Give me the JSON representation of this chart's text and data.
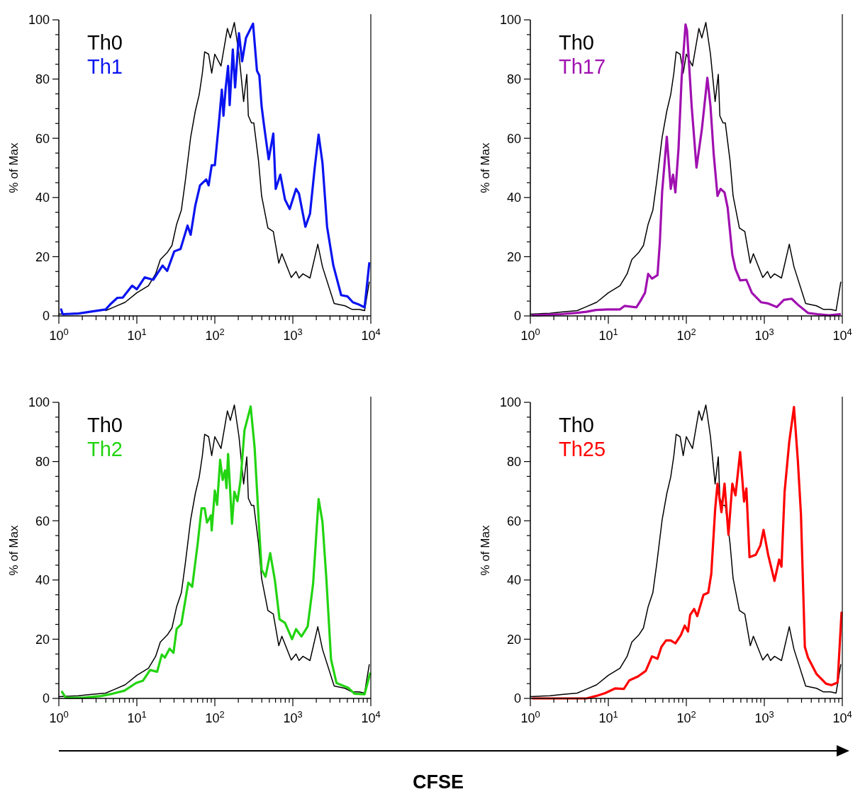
{
  "chart_data": [
    {
      "type": "line",
      "log": "x",
      "legend": "top left",
      "ylabel": "% of Max",
      "xlim": [
        1,
        10000
      ],
      "ylim": [
        0,
        100
      ],
      "xticks": [
        {
          "value": 1,
          "label": "10$^{0}$"
        },
        {
          "value": 2,
          "label": null
        },
        {
          "value": 3,
          "label": null
        },
        {
          "value": 4,
          "label": null
        },
        {
          "value": 5,
          "label": null
        },
        {
          "value": 6,
          "label": null
        },
        {
          "value": 7,
          "label": null
        },
        {
          "value": 8,
          "label": null
        },
        {
          "value": 9,
          "label": null
        },
        {
          "value": 10,
          "label": "10$^{1}$"
        },
        {
          "value": 20,
          "label": null
        },
        {
          "value": 30,
          "label": null
        },
        {
          "value": 40,
          "label": null
        },
        {
          "value": 50,
          "label": null
        },
        {
          "value": 60,
          "label": null
        },
        {
          "value": 70,
          "label": null
        },
        {
          "value": 80,
          "label": null
        },
        {
          "value": 90,
          "label": null
        },
        {
          "value": 100,
          "label": "10$^{2}$"
        },
        {
          "value": 200,
          "label": null
        },
        {
          "value": 300,
          "label": null
        },
        {
          "value": 400,
          "label": null
        },
        {
          "value": 500,
          "label": null
        },
        {
          "value": 600,
          "label": null
        },
        {
          "value": 700,
          "label": null
        },
        {
          "value": 800,
          "label": null
        },
        {
          "value": 900,
          "label": null
        },
        {
          "value": 1000,
          "label": "10$^{3}$"
        },
        {
          "value": 2000,
          "label": null
        },
        {
          "value": 3000,
          "label": null
        },
        {
          "value": 4000,
          "label": null
        },
        {
          "value": 5000,
          "label": null
        },
        {
          "value": 6000,
          "label": null
        },
        {
          "value": 7000,
          "label": null
        },
        {
          "value": 8000,
          "label": null
        },
        {
          "value": 9000,
          "label": null
        },
        {
          "value": 10000,
          "label": "10$^{4}$"
        }
      ],
      "yticks": [
        0,
        {
          "value": 5,
          "label": null
        },
        {
          "value": 10,
          "label": null
        },
        {
          "value": 15,
          "label": null
        },
        20,
        {
          "value": 25,
          "label": null
        },
        {
          "value": 30,
          "label": null
        },
        {
          "value": 35,
          "label": null
        },
        40,
        {
          "value": 45,
          "label": null
        },
        {
          "value": 50,
          "label": null
        },
        {
          "value": 55,
          "label": null
        },
        60,
        {
          "value": 65,
          "label": null
        },
        {
          "value": 70,
          "label": null
        },
        {
          "value": 75,
          "label": null
        },
        80,
        {
          "value": 85,
          "label": null
        },
        {
          "value": 90,
          "label": null
        },
        {
          "value": 95,
          "label": null
        },
        100
      ],
      "x": [
        1,
        1.78,
        2.51,
        3.98,
        5.01,
        7.08,
        10,
        14.1,
        17.4,
        20,
        24.5,
        28.2,
        32.4,
        37.2,
        41.7,
        49,
        56.2,
        63.1,
        69.2,
        74.1,
        83.2,
        91.2,
        100,
        120,
        145,
        158,
        178,
        204,
        234,
        257,
        269,
        295,
        316,
        363,
        398,
        479,
        562,
        661,
        724,
        955,
        1100,
        1200,
        1350,
        1660,
        2090,
        2400,
        3390,
        4680,
        5750,
        7080,
        8320,
        9550
      ],
      "series": [
        {
          "name": "Th0",
          "color": "#000000",
          "values": [
            0.6,
            0.9,
            null,
            1.8,
            2.9,
            4.6,
            7.8,
            10.2,
            14.2,
            19,
            21.4,
            23.8,
            31,
            35.7,
            45.3,
            60.4,
            69.2,
            74.8,
            82,
            89.2,
            88.4,
            82,
            88.4,
            84.4,
            97.1,
            93.9,
            99.1,
            88.4,
            72.4,
            81.6,
            67.6,
            65.2,
            65.2,
            52.5,
            40.5,
            29.7,
            28.5,
            17.8,
            21,
            13,
            15,
            12.8,
            14.2,
            12.8,
            24.2,
            16.6,
            4.2,
            3.4,
            2.2,
            2.2,
            1.8,
            11.4
          ]
        },
        {
          "name": "Th1",
          "color": "#0a14f0",
          "x": [
            1.07,
            1.12,
            1.78,
            2.51,
            3.98,
            4.68,
            5.62,
            6.61,
            8.71,
            10,
            12.6,
            16.2,
            21.4,
            24.5,
            30.2,
            36.3,
            44.7,
            49,
            56.2,
            64.6,
            77.6,
            83.2,
            91.2,
            100,
            112,
            123,
            129,
            138,
            148,
            155,
            170,
            182,
            204,
            224,
            251,
            288,
            309,
            347,
            372,
            398,
            427,
            490,
            562,
            603,
            692,
            794,
            912,
            1100,
            1200,
            1450,
            1660,
            1910,
            2140,
            2400,
            2750,
            3310,
            4170,
            5010,
            5890,
            7080,
            8320,
            9550
          ],
          "values": [
            2.2,
            0.6,
            0.8,
            1.4,
            2.2,
            4.2,
            6.1,
            6.2,
            10.2,
            9,
            13,
            12.2,
            17,
            15.2,
            21.8,
            22.6,
            30.5,
            27.4,
            37.3,
            44.1,
            46.1,
            44.1,
            50.9,
            50.9,
            64.4,
            76.4,
            67.6,
            77.2,
            84.4,
            71.2,
            90,
            77.2,
            95.5,
            86,
            93.9,
            97.1,
            98.7,
            82.8,
            81.2,
            70.8,
            64.4,
            52.9,
            61.6,
            42.9,
            47.7,
            39.3,
            36.1,
            42.9,
            41.3,
            30.1,
            34.5,
            50.1,
            61.2,
            51.7,
            30.1,
            17,
            7,
            6.6,
            4.6,
            3.8,
            2.9,
            17.8
          ]
        }
      ]
    },
    {
      "type": "line",
      "log": "x",
      "legend": "top left",
      "ylabel": "% of Max",
      "xlim": [
        1,
        10000
      ],
      "ylim": [
        0,
        100
      ],
      "xticks": [
        {
          "value": 1,
          "label": "10$^{0}$"
        },
        {
          "value": 2,
          "label": null
        },
        {
          "value": 3,
          "label": null
        },
        {
          "value": 4,
          "label": null
        },
        {
          "value": 5,
          "label": null
        },
        {
          "value": 6,
          "label": null
        },
        {
          "value": 7,
          "label": null
        },
        {
          "value": 8,
          "label": null
        },
        {
          "value": 9,
          "label": null
        },
        {
          "value": 10,
          "label": "10$^{1}$"
        },
        {
          "value": 20,
          "label": null
        },
        {
          "value": 30,
          "label": null
        },
        {
          "value": 40,
          "label": null
        },
        {
          "value": 50,
          "label": null
        },
        {
          "value": 60,
          "label": null
        },
        {
          "value": 70,
          "label": null
        },
        {
          "value": 80,
          "label": null
        },
        {
          "value": 90,
          "label": null
        },
        {
          "value": 100,
          "label": "10$^{2}$"
        },
        {
          "value": 200,
          "label": null
        },
        {
          "value": 300,
          "label": null
        },
        {
          "value": 400,
          "label": null
        },
        {
          "value": 500,
          "label": null
        },
        {
          "value": 600,
          "label": null
        },
        {
          "value": 700,
          "label": null
        },
        {
          "value": 800,
          "label": null
        },
        {
          "value": 900,
          "label": null
        },
        {
          "value": 1000,
          "label": "10$^{3}$"
        },
        {
          "value": 2000,
          "label": null
        },
        {
          "value": 3000,
          "label": null
        },
        {
          "value": 4000,
          "label": null
        },
        {
          "value": 5000,
          "label": null
        },
        {
          "value": 6000,
          "label": null
        },
        {
          "value": 7000,
          "label": null
        },
        {
          "value": 8000,
          "label": null
        },
        {
          "value": 9000,
          "label": null
        },
        {
          "value": 10000,
          "label": "10$^{4}$"
        }
      ],
      "yticks": [
        0,
        {
          "value": 5,
          "label": null
        },
        {
          "value": 10,
          "label": null
        },
        {
          "value": 15,
          "label": null
        },
        20,
        {
          "value": 25,
          "label": null
        },
        {
          "value": 30,
          "label": null
        },
        {
          "value": 35,
          "label": null
        },
        40,
        {
          "value": 45,
          "label": null
        },
        {
          "value": 50,
          "label": null
        },
        {
          "value": 55,
          "label": null
        },
        60,
        {
          "value": 65,
          "label": null
        },
        {
          "value": 70,
          "label": null
        },
        {
          "value": 75,
          "label": null
        },
        80,
        {
          "value": 85,
          "label": null
        },
        {
          "value": 90,
          "label": null
        },
        {
          "value": 95,
          "label": null
        },
        100
      ],
      "x": [
        1,
        1.78,
        2.51,
        3.98,
        5.01,
        7.08,
        10,
        14.1,
        17.4,
        20,
        24.5,
        28.2,
        32.4,
        37.2,
        41.7,
        49,
        56.2,
        63.1,
        69.2,
        74.1,
        83.2,
        91.2,
        100,
        120,
        145,
        158,
        178,
        204,
        234,
        257,
        269,
        295,
        316,
        363,
        398,
        479,
        562,
        661,
        724,
        955,
        1100,
        1200,
        1350,
        1660,
        2090,
        2400,
        3390,
        4680,
        5750,
        7080,
        8320,
        9550
      ],
      "series": [
        {
          "name": "Th0",
          "color": "#000000",
          "values": [
            0.6,
            0.9,
            1.3,
            1.8,
            2.9,
            4.6,
            7.8,
            10.2,
            14.2,
            19,
            21.4,
            23.8,
            31,
            35.7,
            45.3,
            60.4,
            69.2,
            74.8,
            82,
            89.2,
            88.4,
            82,
            88.4,
            84.4,
            97.1,
            93.9,
            99.1,
            88.4,
            72.4,
            81.6,
            67.6,
            65.2,
            65.2,
            52.5,
            40.5,
            29.7,
            28.5,
            17.8,
            21,
            13,
            15,
            12.8,
            14.2,
            12.8,
            24.2,
            16.6,
            4.2,
            3.4,
            2.2,
            2.2,
            1.8,
            11.4
          ]
        },
        {
          "name": "Th17",
          "color": "#a010b0",
          "x": [
            1.07,
            2.45,
            3.8,
            5.25,
            6.92,
            9.77,
            14.1,
            16.2,
            22.9,
            25.7,
            29.5,
            32.4,
            36.3,
            42.7,
            45.7,
            49,
            56.2,
            63.1,
            67.6,
            72.4,
            79.4,
            87.1,
            97.7,
            102,
            117,
            135,
            158,
            186,
            204,
            224,
            251,
            275,
            309,
            339,
            389,
            427,
            490,
            589,
            692,
            912,
            1120,
            1450,
            1780,
            2240,
            2690,
            3630,
            4790,
            6760,
            9330
          ],
          "values": [
            0.2,
            0.6,
            1,
            1.4,
            2,
            2.2,
            2.2,
            3.4,
            2.9,
            5,
            7.8,
            14.2,
            12.6,
            13.8,
            24.6,
            42.1,
            60.5,
            42.9,
            47.7,
            41.7,
            56.5,
            80.4,
            98.4,
            96.4,
            70.9,
            50.1,
            62.9,
            80.4,
            70.9,
            54.9,
            40.5,
            42.9,
            41.7,
            36.5,
            20.6,
            15.8,
            12,
            12.2,
            7.8,
            4.6,
            4.2,
            3,
            5.4,
            5.8,
            3.8,
            1,
            0.6,
            0.2,
            0.6
          ]
        }
      ]
    },
    {
      "type": "line",
      "log": "x",
      "legend": "top left",
      "ylabel": "% of Max",
      "xlim": [
        1,
        10000
      ],
      "ylim": [
        0,
        100
      ],
      "xticks": [
        {
          "value": 1,
          "label": "10$^{0}$"
        },
        {
          "value": 2,
          "label": null
        },
        {
          "value": 3,
          "label": null
        },
        {
          "value": 4,
          "label": null
        },
        {
          "value": 5,
          "label": null
        },
        {
          "value": 6,
          "label": null
        },
        {
          "value": 7,
          "label": null
        },
        {
          "value": 8,
          "label": null
        },
        {
          "value": 9,
          "label": null
        },
        {
          "value": 10,
          "label": "10$^{1}$"
        },
        {
          "value": 20,
          "label": null
        },
        {
          "value": 30,
          "label": null
        },
        {
          "value": 40,
          "label": null
        },
        {
          "value": 50,
          "label": null
        },
        {
          "value": 60,
          "label": null
        },
        {
          "value": 70,
          "label": null
        },
        {
          "value": 80,
          "label": null
        },
        {
          "value": 90,
          "label": null
        },
        {
          "value": 100,
          "label": "10$^{2}$"
        },
        {
          "value": 200,
          "label": null
        },
        {
          "value": 300,
          "label": null
        },
        {
          "value": 400,
          "label": null
        },
        {
          "value": 500,
          "label": null
        },
        {
          "value": 600,
          "label": null
        },
        {
          "value": 700,
          "label": null
        },
        {
          "value": 800,
          "label": null
        },
        {
          "value": 900,
          "label": null
        },
        {
          "value": 1000,
          "label": "10$^{3}$"
        },
        {
          "value": 2000,
          "label": null
        },
        {
          "value": 3000,
          "label": null
        },
        {
          "value": 4000,
          "label": null
        },
        {
          "value": 5000,
          "label": null
        },
        {
          "value": 6000,
          "label": null
        },
        {
          "value": 7000,
          "label": null
        },
        {
          "value": 8000,
          "label": null
        },
        {
          "value": 9000,
          "label": null
        },
        {
          "value": 10000,
          "label": "10$^{4}$"
        }
      ],
      "yticks": [
        0,
        {
          "value": 5,
          "label": null
        },
        {
          "value": 10,
          "label": null
        },
        {
          "value": 15,
          "label": null
        },
        20,
        {
          "value": 25,
          "label": null
        },
        {
          "value": 30,
          "label": null
        },
        {
          "value": 35,
          "label": null
        },
        40,
        {
          "value": 45,
          "label": null
        },
        {
          "value": 50,
          "label": null
        },
        {
          "value": 55,
          "label": null
        },
        60,
        {
          "value": 65,
          "label": null
        },
        {
          "value": 70,
          "label": null
        },
        {
          "value": 75,
          "label": null
        },
        80,
        {
          "value": 85,
          "label": null
        },
        {
          "value": 90,
          "label": null
        },
        {
          "value": 95,
          "label": null
        },
        100
      ],
      "x": [
        1,
        1.78,
        2.51,
        3.98,
        5.01,
        7.08,
        10,
        14.1,
        17.4,
        20,
        24.5,
        28.2,
        32.4,
        37.2,
        41.7,
        49,
        56.2,
        63.1,
        69.2,
        74.1,
        83.2,
        91.2,
        100,
        120,
        145,
        158,
        178,
        204,
        234,
        257,
        269,
        295,
        316,
        363,
        398,
        479,
        562,
        661,
        724,
        955,
        1100,
        1200,
        1350,
        1660,
        2090,
        2400,
        3390,
        4680,
        5750,
        7080,
        8320,
        9550
      ],
      "series": [
        {
          "name": "Th0",
          "color": "#000000",
          "values": [
            0.6,
            0.9,
            1.3,
            1.8,
            2.9,
            4.6,
            7.8,
            10.2,
            14.2,
            19,
            21.4,
            23.8,
            31,
            35.7,
            45.3,
            60.4,
            69.2,
            74.8,
            82,
            89.2,
            88.4,
            82,
            88.4,
            84.4,
            97.1,
            93.9,
            99.1,
            88.4,
            72.4,
            81.6,
            67.6,
            65.2,
            65.2,
            52.5,
            40.5,
            29.7,
            28.5,
            17.8,
            21,
            13,
            15,
            12.8,
            14.2,
            12.8,
            24.2,
            16.6,
            4.2,
            3.4,
            2.2,
            2.2,
            1.8,
            11.4
          ]
        },
        {
          "name": "Th2",
          "color": "#22d411",
          "x": [
            1.1,
            1.23,
            2,
            3.47,
            4.9,
            6.92,
            9.77,
            12,
            14.8,
            18.2,
            20.9,
            22.9,
            26.3,
            29.5,
            32.4,
            37.2,
            45.7,
            51.3,
            60.3,
            67.6,
            74.1,
            79.4,
            89.1,
            91.2,
            100,
            107,
            117,
            126,
            135,
            141,
            148,
            166,
            178,
            195,
            214,
            240,
            288,
            324,
            372,
            398,
            447,
            513,
            589,
            676,
            794,
            977,
            1100,
            1290,
            1550,
            1820,
            2140,
            2400,
            2690,
            3090,
            3630,
            5130,
            6170,
            8320,
            9770
          ],
          "values": [
            2.2,
            0.2,
            0.2,
            0.8,
            1.6,
            2.6,
            5.2,
            6,
            9.6,
            9,
            14.8,
            13.8,
            16.8,
            15.4,
            23.5,
            25.1,
            39.1,
            37.7,
            52.3,
            64.2,
            64.2,
            59.4,
            61.8,
            56.7,
            70.2,
            65.4,
            80.6,
            73.8,
            77,
            71,
            82.6,
            59,
            69.8,
            66.6,
            73.8,
            90.6,
            98.6,
            84.6,
            56.3,
            43.5,
            41.1,
            49.1,
            39.9,
            26.7,
            25.5,
            20,
            23.4,
            20.9,
            24.3,
            38.7,
            67.3,
            59.6,
            40.5,
            13.2,
            5.2,
            3.6,
            1.6,
            1.4,
            8.4
          ]
        }
      ]
    },
    {
      "type": "line",
      "log": "x",
      "legend": "top left",
      "ylabel": "% of Max",
      "xlabel": "CFSE",
      "xlim": [
        1,
        10000
      ],
      "ylim": [
        0,
        100
      ],
      "xticks": [
        {
          "value": 1,
          "label": "10$^{0}$"
        },
        {
          "value": 2,
          "label": null
        },
        {
          "value": 3,
          "label": null
        },
        {
          "value": 4,
          "label": null
        },
        {
          "value": 5,
          "label": null
        },
        {
          "value": 6,
          "label": null
        },
        {
          "value": 7,
          "label": null
        },
        {
          "value": 8,
          "label": null
        },
        {
          "value": 9,
          "label": null
        },
        {
          "value": 10,
          "label": "10$^{1}$"
        },
        {
          "value": 20,
          "label": null
        },
        {
          "value": 30,
          "label": null
        },
        {
          "value": 40,
          "label": null
        },
        {
          "value": 50,
          "label": null
        },
        {
          "value": 60,
          "label": null
        },
        {
          "value": 70,
          "label": null
        },
        {
          "value": 80,
          "label": null
        },
        {
          "value": 90,
          "label": null
        },
        {
          "value": 100,
          "label": "10$^{2}$"
        },
        {
          "value": 200,
          "label": null
        },
        {
          "value": 300,
          "label": null
        },
        {
          "value": 400,
          "label": null
        },
        {
          "value": 500,
          "label": null
        },
        {
          "value": 600,
          "label": null
        },
        {
          "value": 700,
          "label": null
        },
        {
          "value": 800,
          "label": null
        },
        {
          "value": 900,
          "label": null
        },
        {
          "value": 1000,
          "label": "10$^{3}$"
        },
        {
          "value": 2000,
          "label": null
        },
        {
          "value": 3000,
          "label": null
        },
        {
          "value": 4000,
          "label": null
        },
        {
          "value": 5000,
          "label": null
        },
        {
          "value": 6000,
          "label": null
        },
        {
          "value": 7000,
          "label": null
        },
        {
          "value": 8000,
          "label": null
        },
        {
          "value": 9000,
          "label": null
        },
        {
          "value": 10000,
          "label": "10$^{4}$"
        }
      ],
      "yticks": [
        0,
        {
          "value": 5,
          "label": null
        },
        {
          "value": 10,
          "label": null
        },
        {
          "value": 15,
          "label": null
        },
        20,
        {
          "value": 25,
          "label": null
        },
        {
          "value": 30,
          "label": null
        },
        {
          "value": 35,
          "label": null
        },
        40,
        {
          "value": 45,
          "label": null
        },
        {
          "value": 50,
          "label": null
        },
        {
          "value": 55,
          "label": null
        },
        60,
        {
          "value": 65,
          "label": null
        },
        {
          "value": 70,
          "label": null
        },
        {
          "value": 75,
          "label": null
        },
        80,
        {
          "value": 85,
          "label": null
        },
        {
          "value": 90,
          "label": null
        },
        {
          "value": 95,
          "label": null
        },
        100
      ],
      "x": [
        1,
        1.78,
        2.51,
        3.98,
        5.01,
        7.08,
        10,
        14.1,
        17.4,
        20,
        24.5,
        28.2,
        32.4,
        37.2,
        41.7,
        49,
        56.2,
        63.1,
        69.2,
        74.1,
        83.2,
        91.2,
        100,
        120,
        145,
        158,
        178,
        204,
        234,
        257,
        269,
        295,
        316,
        363,
        398,
        479,
        562,
        661,
        724,
        955,
        1100,
        1200,
        1350,
        1660,
        2090,
        2400,
        3390,
        4680,
        5750,
        7080,
        8320,
        9550
      ],
      "series": [
        {
          "name": "Th0",
          "color": "#000000",
          "values": [
            0.6,
            0.9,
            1.3,
            1.8,
            2.9,
            4.6,
            7.8,
            10.2,
            14.2,
            19,
            21.4,
            23.8,
            31,
            35.7,
            45.3,
            60.4,
            69.2,
            74.8,
            82,
            89.2,
            88.4,
            82,
            88.4,
            84.4,
            97.1,
            93.9,
            99.1,
            88.4,
            72.4,
            81.6,
            67.6,
            65.2,
            65.2,
            52.5,
            40.5,
            29.7,
            28.5,
            17.8,
            21,
            13,
            15,
            12.8,
            14.2,
            12.8,
            24.2,
            16.6,
            4.2,
            3.4,
            2.2,
            2.2,
            1.8,
            11.4
          ]
        },
        {
          "name": "Th25",
          "color": "#ff0000",
          "x": [
            1.07,
            2.45,
            5.25,
            6.92,
            9.12,
            12.3,
            15.8,
            18.6,
            24,
            30.2,
            36.3,
            42.7,
            47.9,
            55,
            63.1,
            72.4,
            85.1,
            95.5,
            105,
            112,
            126,
            138,
            166,
            191,
            209,
            234,
            251,
            282,
            309,
            347,
            389,
            427,
            490,
            550,
            589,
            646,
            776,
            891,
            977,
            1120,
            1350,
            1550,
            1660,
            1820,
            2090,
            2400,
            2690,
            2950,
            3310,
            3630,
            4680,
            6170,
            7240,
            8710,
            9770
          ],
          "values": [
            0,
            0,
            0,
            0.8,
            1.8,
            3.4,
            3.2,
            6.1,
            7.4,
            9.3,
            14.2,
            13.4,
            17.4,
            19.6,
            19.6,
            18.6,
            21.4,
            24.6,
            22.6,
            28.2,
            30.2,
            27.8,
            35,
            35.7,
            42.1,
            63.7,
            72.5,
            62.9,
            72.5,
            55.3,
            72.5,
            68.6,
            83.2,
            66.5,
            70.9,
            47.7,
            48.5,
            51.7,
            56.9,
            48.5,
            39.7,
            46.9,
            44.5,
            69.8,
            86.8,
            98.4,
            80.4,
            62.1,
            17.4,
            13.8,
            8.2,
            5,
            4.5,
            5.4,
            29
          ]
        }
      ]
    }
  ]
}
